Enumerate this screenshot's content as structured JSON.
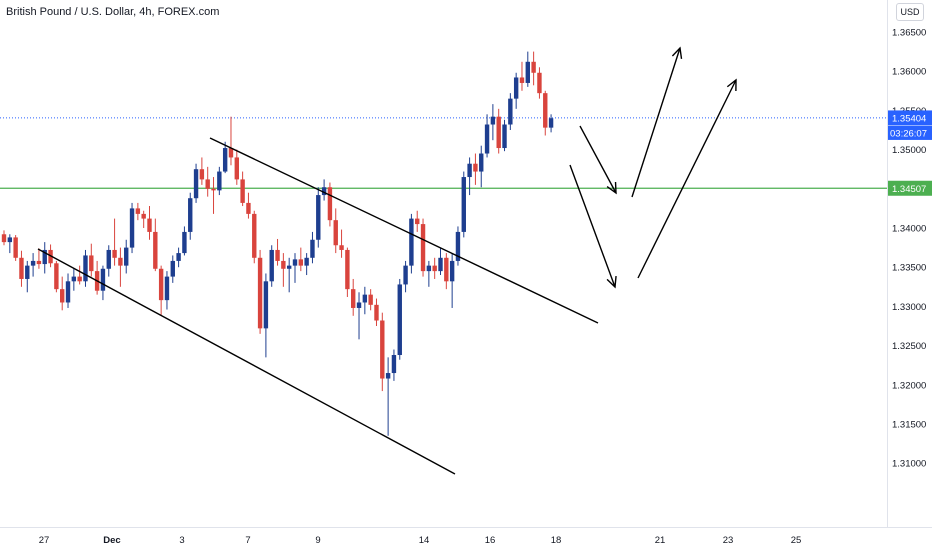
{
  "header": {
    "title": "British Pound / U.S. Dollar, 4h, FOREX.com",
    "currency": "USD"
  },
  "chart_data": {
    "type": "candlestick",
    "y_ticks": [
      "1.36500",
      "1.36000",
      "1.35500",
      "1.35000",
      "1.34500",
      "1.34000",
      "1.33500",
      "1.33000",
      "1.32500",
      "1.32000",
      "1.31500",
      "1.31000"
    ],
    "ylim": [
      1.3095,
      1.3675
    ],
    "x_ticks": [
      "27",
      "Dec",
      "3",
      "7",
      "9",
      "14",
      "16",
      "18",
      "21",
      "23",
      "25"
    ],
    "colors": {
      "up": "#1e3e8f",
      "down": "#d9443d",
      "support": "#4caf50",
      "price_line": "#2962ff",
      "channel": "#000000"
    },
    "last_price": {
      "value": "1.35404",
      "countdown": "03:26:07"
    },
    "support_level": {
      "value": "1.34507"
    },
    "candles": [
      [
        1.3392,
        1.3397,
        1.3378,
        1.3382
      ],
      [
        1.3382,
        1.3392,
        1.3368,
        1.3388
      ],
      [
        1.3388,
        1.3391,
        1.3358,
        1.3362
      ],
      [
        1.3362,
        1.3371,
        1.3325,
        1.3335
      ],
      [
        1.3335,
        1.3358,
        1.3318,
        1.3352
      ],
      [
        1.3352,
        1.3368,
        1.3338,
        1.3358
      ],
      [
        1.3358,
        1.3374,
        1.3348,
        1.3354
      ],
      [
        1.3354,
        1.3382,
        1.3342,
        1.3372
      ],
      [
        1.3372,
        1.3379,
        1.335,
        1.3355
      ],
      [
        1.3355,
        1.3358,
        1.3318,
        1.3322
      ],
      [
        1.3322,
        1.3338,
        1.3295,
        1.3305
      ],
      [
        1.3305,
        1.3342,
        1.3298,
        1.3332
      ],
      [
        1.3332,
        1.3348,
        1.332,
        1.3338
      ],
      [
        1.3338,
        1.3352,
        1.3328,
        1.3332
      ],
      [
        1.3332,
        1.3372,
        1.3325,
        1.3365
      ],
      [
        1.3365,
        1.338,
        1.3338,
        1.3345
      ],
      [
        1.3345,
        1.3358,
        1.3315,
        1.332
      ],
      [
        1.332,
        1.3352,
        1.3308,
        1.3348
      ],
      [
        1.3348,
        1.3378,
        1.3338,
        1.3372
      ],
      [
        1.3372,
        1.3412,
        1.3352,
        1.3362
      ],
      [
        1.3362,
        1.3375,
        1.3325,
        1.3352
      ],
      [
        1.3352,
        1.3385,
        1.3342,
        1.3375
      ],
      [
        1.3375,
        1.3432,
        1.3368,
        1.3425
      ],
      [
        1.3425,
        1.3432,
        1.341,
        1.3418
      ],
      [
        1.3418,
        1.3422,
        1.34,
        1.3412
      ],
      [
        1.3412,
        1.3428,
        1.3385,
        1.3395
      ],
      [
        1.3395,
        1.3412,
        1.3345,
        1.3348
      ],
      [
        1.3348,
        1.3352,
        1.3288,
        1.3308
      ],
      [
        1.3308,
        1.3345,
        1.3296,
        1.3338
      ],
      [
        1.3338,
        1.3365,
        1.333,
        1.3358
      ],
      [
        1.3358,
        1.3375,
        1.335,
        1.3368
      ],
      [
        1.3368,
        1.3402,
        1.3365,
        1.3395
      ],
      [
        1.3395,
        1.3445,
        1.3385,
        1.3438
      ],
      [
        1.3438,
        1.3482,
        1.3432,
        1.3475
      ],
      [
        1.3475,
        1.349,
        1.3455,
        1.3462
      ],
      [
        1.3462,
        1.3478,
        1.344,
        1.345
      ],
      [
        1.345,
        1.3465,
        1.3418,
        1.3448
      ],
      [
        1.3448,
        1.3478,
        1.3442,
        1.3472
      ],
      [
        1.3472,
        1.351,
        1.347,
        1.3502
      ],
      [
        1.3502,
        1.3542,
        1.348,
        1.349
      ],
      [
        1.349,
        1.35,
        1.3455,
        1.3462
      ],
      [
        1.3462,
        1.3472,
        1.3428,
        1.3432
      ],
      [
        1.3432,
        1.3445,
        1.3412,
        1.3418
      ],
      [
        1.3418,
        1.3422,
        1.3355,
        1.3362
      ],
      [
        1.3362,
        1.3372,
        1.3265,
        1.3272
      ],
      [
        1.3272,
        1.3342,
        1.3235,
        1.3332
      ],
      [
        1.3332,
        1.3378,
        1.3325,
        1.3372
      ],
      [
        1.3372,
        1.3386,
        1.3352,
        1.3358
      ],
      [
        1.3358,
        1.3368,
        1.3325,
        1.3348
      ],
      [
        1.3348,
        1.3362,
        1.3318,
        1.3352
      ],
      [
        1.3352,
        1.3368,
        1.333,
        1.336
      ],
      [
        1.336,
        1.3375,
        1.3345,
        1.3352
      ],
      [
        1.3352,
        1.3368,
        1.334,
        1.3362
      ],
      [
        1.3362,
        1.3395,
        1.3355,
        1.3385
      ],
      [
        1.3385,
        1.3452,
        1.3375,
        1.3442
      ],
      [
        1.3442,
        1.3462,
        1.3435,
        1.3452
      ],
      [
        1.3452,
        1.3458,
        1.3402,
        1.341
      ],
      [
        1.341,
        1.3425,
        1.3368,
        1.3378
      ],
      [
        1.3378,
        1.3398,
        1.3362,
        1.3372
      ],
      [
        1.3372,
        1.3375,
        1.3312,
        1.3322
      ],
      [
        1.3322,
        1.3335,
        1.3288,
        1.3298
      ],
      [
        1.3298,
        1.3318,
        1.3258,
        1.3305
      ],
      [
        1.3305,
        1.3325,
        1.329,
        1.3315
      ],
      [
        1.3315,
        1.3322,
        1.3295,
        1.3302
      ],
      [
        1.3302,
        1.331,
        1.3275,
        1.3282
      ],
      [
        1.3282,
        1.3292,
        1.3192,
        1.3208
      ],
      [
        1.3208,
        1.3235,
        1.3135,
        1.3215
      ],
      [
        1.3215,
        1.3245,
        1.3205,
        1.3238
      ],
      [
        1.3238,
        1.3335,
        1.3232,
        1.3328
      ],
      [
        1.3328,
        1.3358,
        1.3318,
        1.3352
      ],
      [
        1.3352,
        1.3418,
        1.3342,
        1.3412
      ],
      [
        1.3412,
        1.3422,
        1.3395,
        1.3405
      ],
      [
        1.3405,
        1.3412,
        1.3338,
        1.3345
      ],
      [
        1.3345,
        1.3358,
        1.3325,
        1.3352
      ],
      [
        1.3352,
        1.3362,
        1.3335,
        1.3345
      ],
      [
        1.3345,
        1.3375,
        1.334,
        1.3362
      ],
      [
        1.3362,
        1.3368,
        1.3322,
        1.3332
      ],
      [
        1.3332,
        1.3368,
        1.3298,
        1.3358
      ],
      [
        1.3358,
        1.3402,
        1.3352,
        1.3395
      ],
      [
        1.3395,
        1.3472,
        1.3388,
        1.3465
      ],
      [
        1.3465,
        1.349,
        1.3442,
        1.3482
      ],
      [
        1.3482,
        1.3495,
        1.3455,
        1.3472
      ],
      [
        1.3472,
        1.3505,
        1.3452,
        1.3495
      ],
      [
        1.3495,
        1.3545,
        1.349,
        1.3532
      ],
      [
        1.3532,
        1.3558,
        1.3512,
        1.3542
      ],
      [
        1.3542,
        1.3552,
        1.3495,
        1.3502
      ],
      [
        1.3502,
        1.3538,
        1.3498,
        1.3532
      ],
      [
        1.3532,
        1.3572,
        1.3525,
        1.3565
      ],
      [
        1.3565,
        1.3598,
        1.3552,
        1.3592
      ],
      [
        1.3592,
        1.3612,
        1.3575,
        1.3585
      ],
      [
        1.3585,
        1.3625,
        1.358,
        1.3612
      ],
      [
        1.3612,
        1.3625,
        1.3582,
        1.3598
      ],
      [
        1.3598,
        1.3605,
        1.3565,
        1.3572
      ],
      [
        1.3572,
        1.3575,
        1.3518,
        1.3528
      ],
      [
        1.3528,
        1.3545,
        1.3522,
        1.354
      ]
    ]
  }
}
